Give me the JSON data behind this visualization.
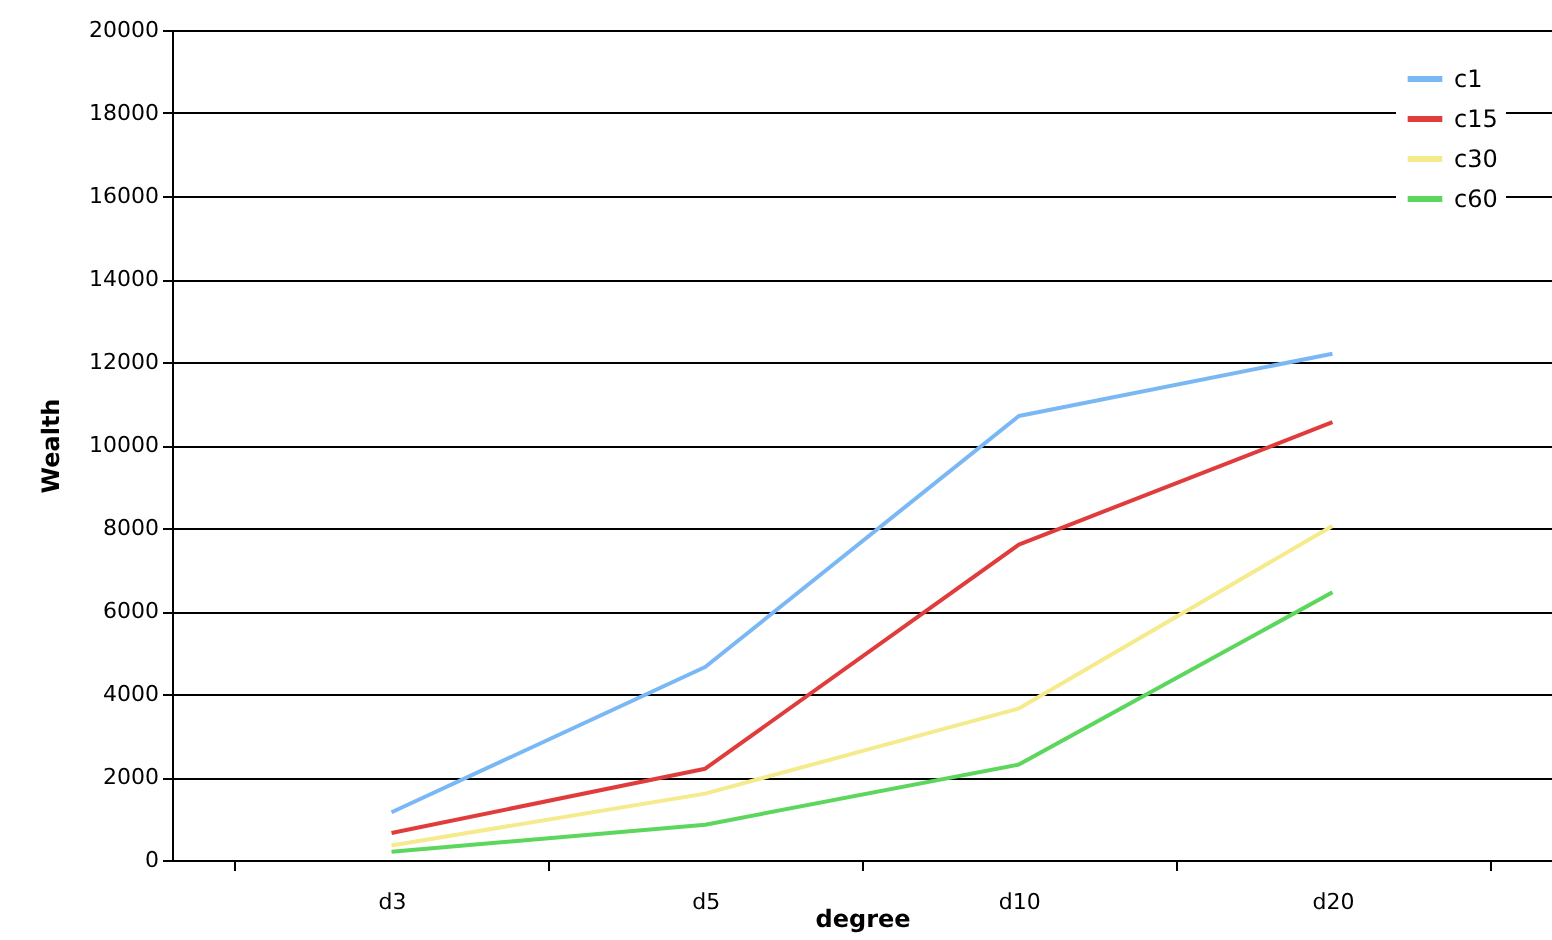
{
  "chart_data": {
    "type": "line",
    "xlabel": "degree",
    "ylabel": "Wealth",
    "categories": [
      "d3",
      "d5",
      "d10",
      "d20"
    ],
    "series": [
      {
        "name": "c1",
        "color": "#7ab8f5",
        "values": [
          1150,
          4650,
          10700,
          12200
        ]
      },
      {
        "name": "c15",
        "color": "#e03c3c",
        "values": [
          650,
          2200,
          7600,
          10550
        ]
      },
      {
        "name": "c30",
        "color": "#f5eb8c",
        "values": [
          350,
          1600,
          3650,
          8050
        ]
      },
      {
        "name": "c60",
        "color": "#5cd65c",
        "values": [
          200,
          850,
          2300,
          6450
        ]
      }
    ],
    "ylim": [
      0,
      20000
    ],
    "yticks": [
      0,
      2000,
      4000,
      6000,
      8000,
      10000,
      12000,
      14000,
      16000,
      18000,
      20000
    ],
    "grid": "y",
    "legend": "top right",
    "marker": "none",
    "line_style": "solid"
  }
}
